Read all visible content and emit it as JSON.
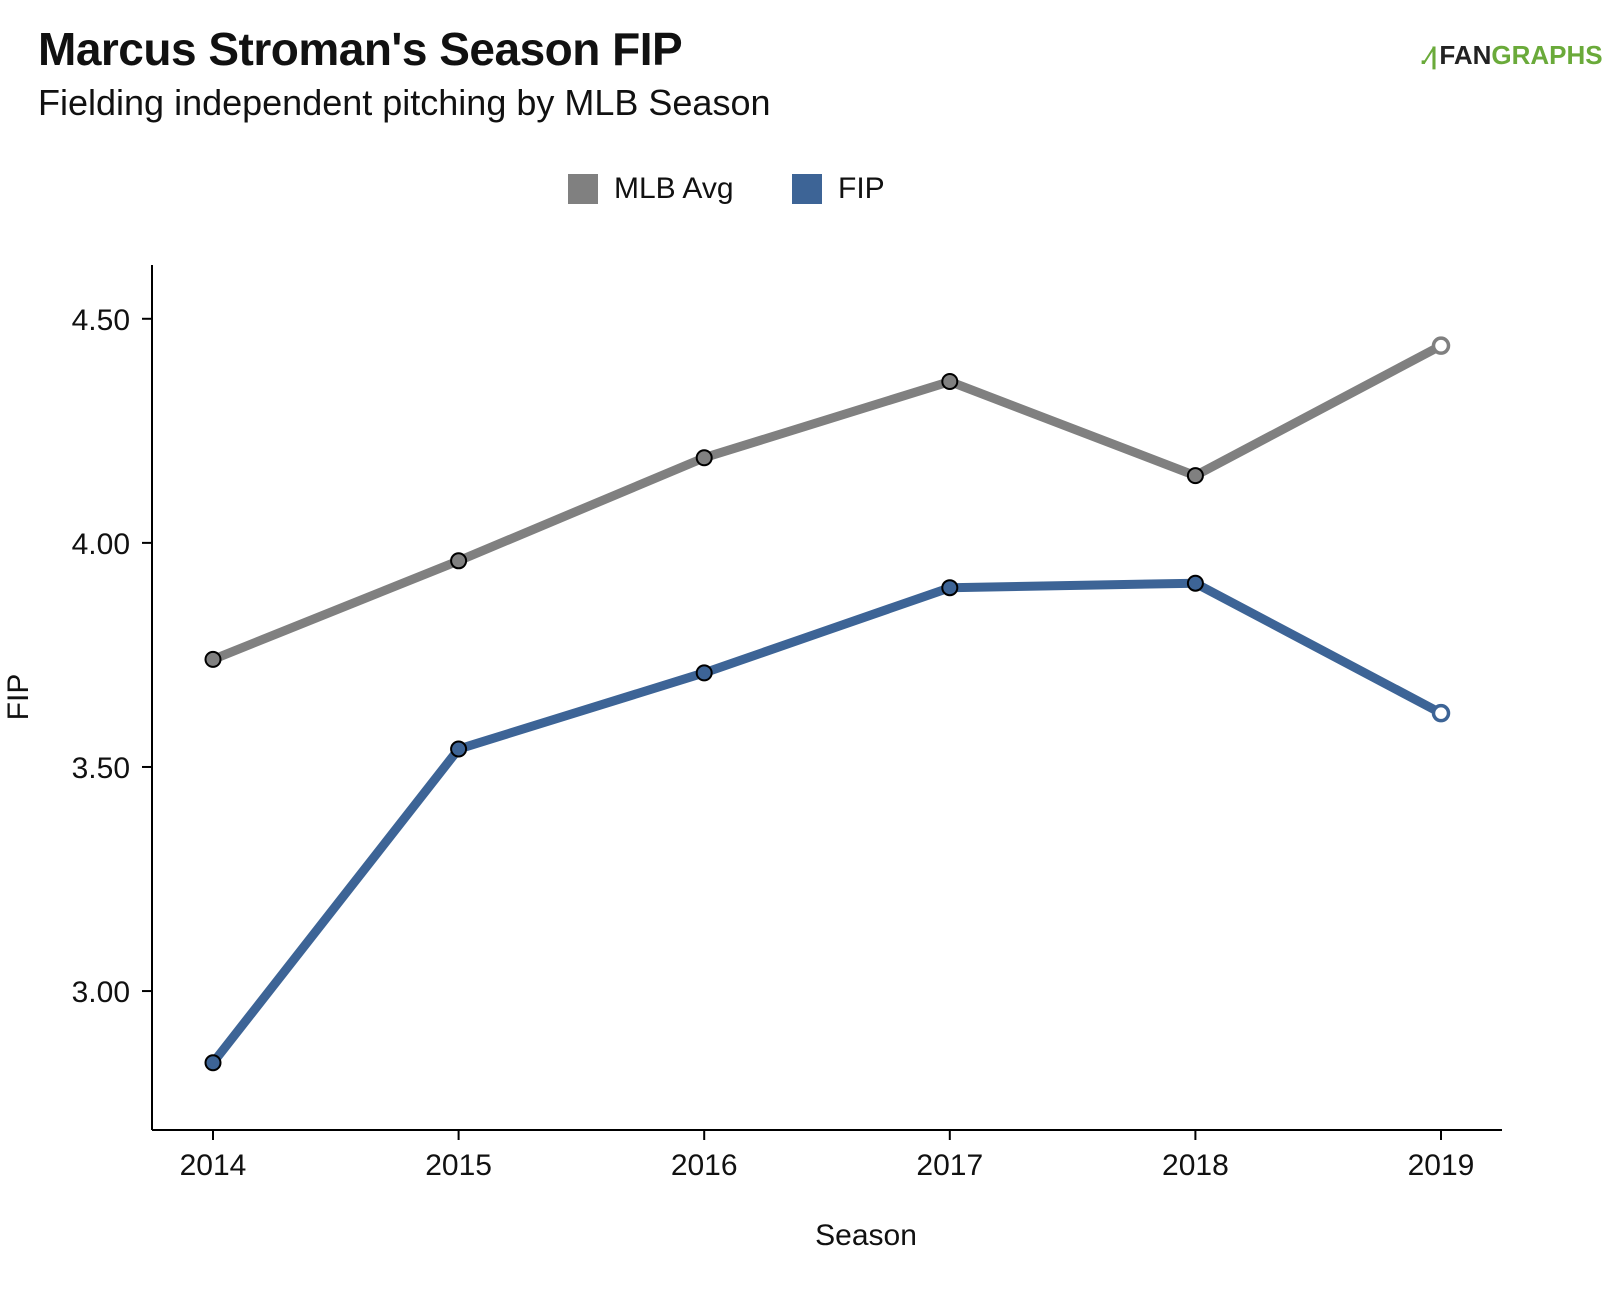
{
  "header": {
    "title": "Marcus Stroman's Season FIP",
    "subtitle": "Fielding independent pitching by MLB Season",
    "logo_fan": "FAN",
    "logo_graphs": "GRAPHS"
  },
  "chart_data": {
    "type": "line",
    "title": "Marcus Stroman's Season FIP",
    "subtitle": "Fielding independent pitching by MLB Season",
    "xlabel": "Season",
    "ylabel": "FIP",
    "x": [
      2014,
      2015,
      2016,
      2017,
      2018,
      2019
    ],
    "x_tick_labels": [
      "2014",
      "2015",
      "2016",
      "2017",
      "2018",
      "2019"
    ],
    "y_ticks": [
      3.0,
      3.5,
      4.0,
      4.5
    ],
    "y_tick_labels": [
      "3.00",
      "3.50",
      "4.00",
      "4.50"
    ],
    "ylim": [
      2.69,
      4.62
    ],
    "grid": false,
    "legend_position": "top-center",
    "series": [
      {
        "name": "MLB Avg",
        "color": "#808080",
        "values": [
          3.74,
          3.96,
          4.19,
          4.36,
          4.15,
          4.44
        ],
        "open_last_point": true
      },
      {
        "name": "FIP",
        "color": "#3d6496",
        "values": [
          2.84,
          3.54,
          3.71,
          3.9,
          3.91,
          3.62
        ],
        "open_last_point": true
      }
    ]
  }
}
